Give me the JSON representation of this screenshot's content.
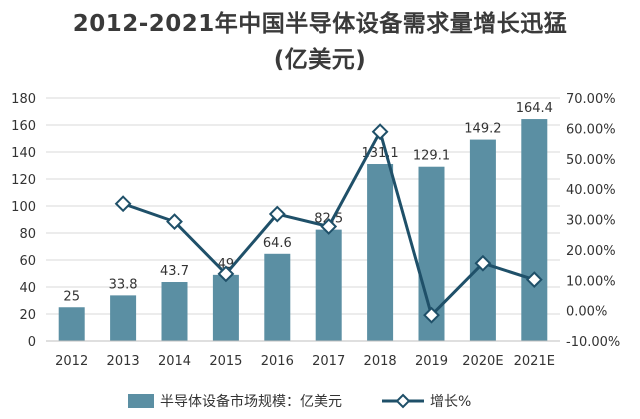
{
  "chart_data": {
    "type": "bar+line",
    "title": "2012-2021年中国半导体设备需求量增长迅猛",
    "subtitle": "(亿美元)",
    "categories": [
      "2012",
      "2013",
      "2014",
      "2015",
      "2016",
      "2017",
      "2018",
      "2019",
      "2020E",
      "2021E"
    ],
    "series": [
      {
        "name": "半导体设备市场规模：亿美元",
        "type": "bar",
        "axis": "left",
        "color": "#5b8fa3",
        "values": [
          25,
          33.8,
          43.7,
          49,
          64.6,
          82.5,
          131.1,
          129.1,
          149.2,
          164.4
        ],
        "labels": [
          "25",
          "33.8",
          "43.7",
          "49",
          "64.6",
          "82.5",
          "131.1",
          "129.1",
          "149.2",
          "164.4"
        ]
      },
      {
        "name": "增长%",
        "type": "line",
        "axis": "right",
        "color": "#1f5069",
        "values": [
          null,
          35.2,
          29.3,
          12.1,
          31.8,
          27.7,
          58.9,
          -1.5,
          15.6,
          10.2
        ]
      }
    ],
    "left_axis": {
      "min": 0,
      "max": 180,
      "step": 20,
      "ticks": [
        "0",
        "20",
        "40",
        "60",
        "80",
        "100",
        "120",
        "140",
        "160",
        "180"
      ]
    },
    "right_axis": {
      "min": -10,
      "max": 70,
      "step": 10,
      "ticks": [
        "-10.00%",
        "0.00%",
        "10.00%",
        "20.00%",
        "30.00%",
        "40.00%",
        "50.00%",
        "60.00%",
        "70.00%"
      ]
    },
    "grid": true,
    "legend_position": "bottom"
  }
}
